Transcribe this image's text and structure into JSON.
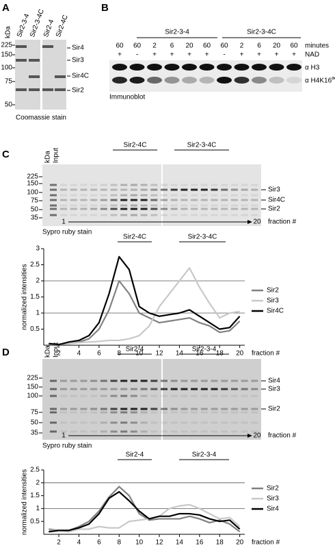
{
  "panel_a": {
    "label": "A",
    "kda": "kDa",
    "lanes": [
      "Sir2-3-4",
      "Sir2-3-4C",
      "Sir2-4",
      "Sir2-4C"
    ],
    "mw": [
      225,
      150,
      100,
      75,
      50
    ],
    "bands": [
      "Sir4",
      "Sir3",
      "Sir4C",
      "Sir2"
    ],
    "caption": "Coomassie stain"
  },
  "panel_b": {
    "label": "B",
    "groups": [
      "Sir2-3-4",
      "Sir2-3-4C"
    ],
    "minutes_label": "minutes",
    "nad_label": "NAD",
    "minutes": [
      60,
      60,
      2,
      6,
      20,
      60,
      60,
      2,
      6,
      20,
      60
    ],
    "nad": [
      "+",
      "-",
      "+",
      "+",
      "+",
      "+",
      "-",
      "+",
      "+",
      "+",
      "+"
    ],
    "antibodies": [
      {
        "text": "α H3"
      },
      {
        "text": "α H4K16",
        "superscript": "ac"
      }
    ],
    "caption": "Immunoblot"
  },
  "panel_c": {
    "label": "C",
    "kda": "kDa",
    "input": "Input",
    "groups": [
      "Sir2-4C",
      "Sir2-3-4C"
    ],
    "mw": [
      225,
      150,
      100,
      75,
      50,
      35
    ],
    "bands": [
      "Sir3",
      "Sir4C",
      "Sir2"
    ],
    "fraction_start": 1,
    "fraction_end": 20,
    "fraction_label": "fraction #",
    "caption": "Sypro ruby stain"
  },
  "panel_d": {
    "label": "D",
    "kda": "kDa",
    "input": "Input",
    "groups": [
      "Sir2-4",
      "Sir2-3-4"
    ],
    "mw": [
      225,
      150,
      100,
      75,
      50,
      35
    ],
    "bands": [
      "Sir4",
      "Sir3",
      "Sir2"
    ],
    "fraction_start": 1,
    "fraction_end": 20,
    "fraction_label": "fraction #",
    "caption": "Sypro ruby stain"
  },
  "chart_data": [
    {
      "type": "line",
      "annotations": [
        "Sir2-4C",
        "Sir2-3-4C"
      ],
      "ylabel": "normalized intensities",
      "xlabel": "fraction #",
      "xlim": [
        0.5,
        20.5
      ],
      "ylim": [
        0,
        3
      ],
      "xticks": [
        2,
        4,
        6,
        8,
        10,
        12,
        14,
        16,
        18,
        20
      ],
      "yticks": [
        0.5,
        1,
        1.5,
        2,
        2.5,
        3
      ],
      "hlines": [
        1,
        2
      ],
      "x": [
        1,
        2,
        3,
        4,
        5,
        6,
        7,
        8,
        9,
        10,
        11,
        12,
        13,
        14,
        15,
        16,
        17,
        18,
        19,
        20
      ],
      "series": [
        {
          "name": "Sir2",
          "color": "#808080",
          "values": [
            0.05,
            0.03,
            0.05,
            0.1,
            0.2,
            0.5,
            1.1,
            2.0,
            1.6,
            1.0,
            0.85,
            0.7,
            0.75,
            0.8,
            0.85,
            0.7,
            0.6,
            0.4,
            0.45,
            0.75
          ]
        },
        {
          "name": "Sir3",
          "color": "#c8c8c8",
          "values": [
            0.03,
            0.02,
            0.05,
            0.08,
            0.1,
            0.12,
            0.15,
            0.15,
            0.2,
            0.3,
            0.6,
            1.2,
            1.6,
            2.0,
            2.4,
            1.8,
            1.3,
            0.85,
            1.0,
            1.05
          ]
        },
        {
          "name": "Sir4C",
          "color": "#000000",
          "values": [
            0.05,
            0.02,
            0.1,
            0.15,
            0.3,
            0.7,
            1.6,
            2.75,
            2.35,
            1.2,
            1.0,
            0.9,
            0.95,
            1.0,
            1.1,
            0.9,
            0.7,
            0.5,
            0.55,
            0.9
          ]
        }
      ]
    },
    {
      "type": "line",
      "annotations": [
        "Sir2-4",
        "Sir2-3-4"
      ],
      "ylabel": "normalized intensities",
      "xlabel": "fraction #",
      "xlim": [
        0.5,
        20.5
      ],
      "ylim": [
        0,
        2.5
      ],
      "xticks": [
        2,
        4,
        6,
        8,
        10,
        12,
        14,
        16,
        18,
        20
      ],
      "yticks": [
        0.5,
        1,
        1.5,
        2,
        2.5
      ],
      "hlines": [
        1,
        2
      ],
      "x": [
        1,
        2,
        3,
        4,
        5,
        6,
        7,
        8,
        9,
        10,
        11,
        12,
        13,
        14,
        15,
        16,
        17,
        18,
        19,
        20
      ],
      "series": [
        {
          "name": "Sir2",
          "color": "#808080",
          "values": [
            0.2,
            0.15,
            0.15,
            0.3,
            0.5,
            0.9,
            1.45,
            1.85,
            1.5,
            0.8,
            0.55,
            0.6,
            0.6,
            0.6,
            0.7,
            0.6,
            0.45,
            0.55,
            0.4,
            0.1
          ]
        },
        {
          "name": "Sir3",
          "color": "#c8c8c8",
          "values": [
            0.15,
            0.15,
            0.1,
            0.2,
            0.2,
            0.3,
            0.25,
            0.25,
            0.5,
            0.55,
            0.6,
            0.7,
            1.0,
            1.1,
            1.15,
            1.0,
            0.8,
            0.6,
            0.65,
            0.3
          ]
        },
        {
          "name": "Sir4",
          "color": "#000000",
          "values": [
            0.1,
            0.15,
            0.15,
            0.25,
            0.4,
            0.8,
            1.4,
            1.65,
            1.3,
            0.9,
            0.6,
            0.7,
            0.7,
            0.8,
            0.8,
            0.75,
            0.6,
            0.5,
            0.55,
            0.2
          ]
        }
      ]
    }
  ]
}
